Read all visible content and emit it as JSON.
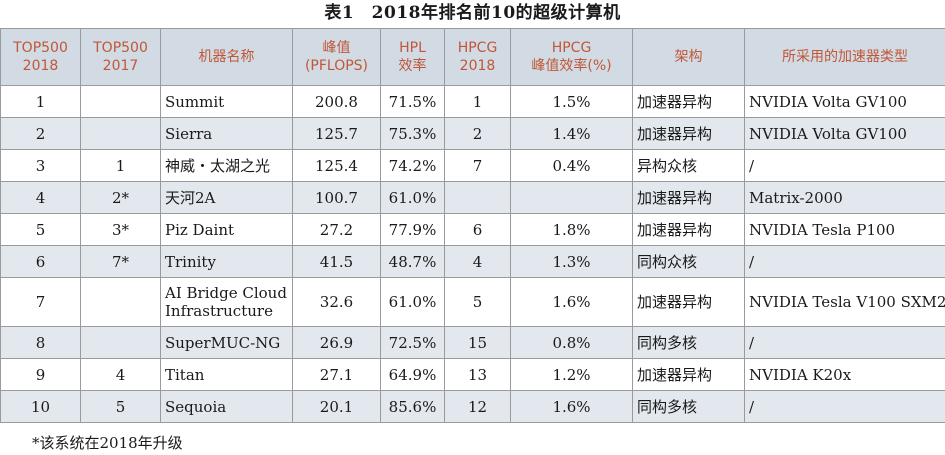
{
  "title": "表1　2018年排名前10的超级计算机",
  "headers": [
    [
      "TOP500",
      "2018"
    ],
    [
      "TOP500",
      "2017"
    ],
    [
      "机器名称"
    ],
    [
      "峰值",
      "(PFLOPS)"
    ],
    [
      "HPL",
      "效率"
    ],
    [
      "HPCG",
      "2018"
    ],
    [
      "HPCG",
      "峰值效率(%)"
    ],
    [
      "架构"
    ],
    [
      "所采用的加速器类型"
    ]
  ],
  "rows": [
    {
      "rank2018": "1",
      "rank2017": "",
      "name": "Summit",
      "peak": "200.8",
      "hpl": "71.5%",
      "hpcg": "1",
      "hpcg_eff": "1.5%",
      "arch": "加速器异构",
      "accel": "NVIDIA Volta GV100"
    },
    {
      "rank2018": "2",
      "rank2017": "",
      "name": "Sierra",
      "peak": "125.7",
      "hpl": "75.3%",
      "hpcg": "2",
      "hpcg_eff": "1.4%",
      "arch": "加速器异构",
      "accel": "NVIDIA Volta GV100"
    },
    {
      "rank2018": "3",
      "rank2017": "1",
      "name": "神威・太湖之光",
      "peak": "125.4",
      "hpl": "74.2%",
      "hpcg": "7",
      "hpcg_eff": "0.4%",
      "arch": "异构众核",
      "accel": "/"
    },
    {
      "rank2018": "4",
      "rank2017": "2*",
      "name": "天河2A",
      "peak": "100.7",
      "hpl": "61.0%",
      "hpcg": "",
      "hpcg_eff": "",
      "arch": "加速器异构",
      "accel": "Matrix-2000"
    },
    {
      "rank2018": "5",
      "rank2017": "3*",
      "name": "Piz Daint",
      "peak": "27.2",
      "hpl": "77.9%",
      "hpcg": "6",
      "hpcg_eff": "1.8%",
      "arch": "加速器异构",
      "accel": "NVIDIA Tesla P100"
    },
    {
      "rank2018": "6",
      "rank2017": "7*",
      "name": "Trinity",
      "peak": "41.5",
      "hpl": "48.7%",
      "hpcg": "4",
      "hpcg_eff": "1.3%",
      "arch": "同构众核",
      "accel": "/"
    },
    {
      "rank2018": "7",
      "rank2017": "",
      "name": "AI Bridge Cloud Infrastructure",
      "peak": "32.6",
      "hpl": "61.0%",
      "hpcg": "5",
      "hpcg_eff": "1.6%",
      "arch": "加速器异构",
      "accel": "NVIDIA Tesla V100 SXM2"
    },
    {
      "rank2018": "8",
      "rank2017": "",
      "name": "SuperMUC-NG",
      "peak": "26.9",
      "hpl": "72.5%",
      "hpcg": "15",
      "hpcg_eff": "0.8%",
      "arch": "同构多核",
      "accel": "/"
    },
    {
      "rank2018": "9",
      "rank2017": "4",
      "name": "Titan",
      "peak": "27.1",
      "hpl": "64.9%",
      "hpcg": "13",
      "hpcg_eff": "1.2%",
      "arch": "加速器异构",
      "accel": "NVIDIA K20x"
    },
    {
      "rank2018": "10",
      "rank2017": "5",
      "name": "Sequoia",
      "peak": "20.1",
      "hpl": "85.6%",
      "hpcg": "12",
      "hpcg_eff": "1.6%",
      "arch": "同构多核",
      "accel": "/"
    }
  ],
  "footnote": "*该系统在2018年升级",
  "colors": {
    "header_bg": "#d2dbe3",
    "header_text": "#c0573a",
    "alt_row_bg": "#e2e8ed",
    "border": "#9a9a9a"
  }
}
